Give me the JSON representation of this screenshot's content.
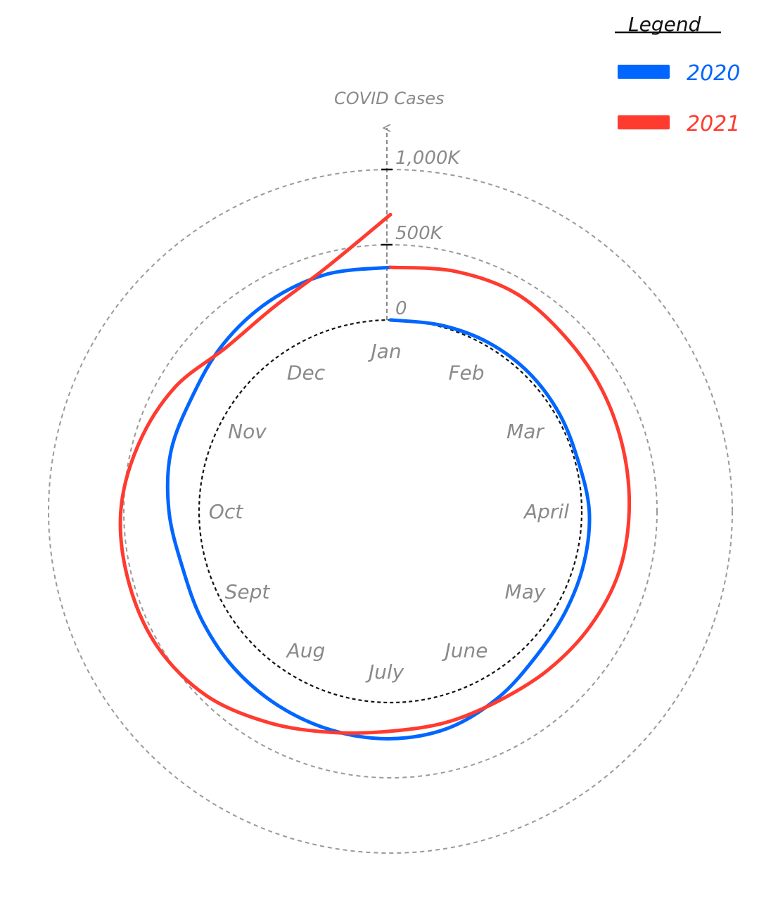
{
  "chart_data": {
    "type": "line",
    "subtype": "radial",
    "axis_title": "COVID Cases",
    "radial_ticks": [
      {
        "value": 0,
        "label": "0"
      },
      {
        "value": 500,
        "label": "500K"
      },
      {
        "value": 1000,
        "label": "1,000K"
      }
    ],
    "value_unit": "thousands",
    "rlim": [
      0,
      1000
    ],
    "grid": true,
    "months": [
      "Jan",
      "Feb",
      "Mar",
      "April",
      "May",
      "June",
      "July",
      "Aug",
      "Sept",
      "Oct",
      "Nov",
      "Dec"
    ],
    "legend": {
      "title": "Legend",
      "placement": "top-right"
    },
    "series": [
      {
        "name": "2020",
        "color": "#0066ff",
        "points": [
          {
            "month": 0.0,
            "value": 0
          },
          {
            "month": 0.5,
            "value": 10
          },
          {
            "month": 1.0,
            "value": 25
          },
          {
            "month": 1.5,
            "value": 30
          },
          {
            "month": 2.0,
            "value": 25
          },
          {
            "month": 2.5,
            "value": 20
          },
          {
            "month": 3.0,
            "value": 50
          },
          {
            "month": 3.5,
            "value": 60
          },
          {
            "month": 4.0,
            "value": 70
          },
          {
            "month": 4.5,
            "value": 95
          },
          {
            "month": 5.0,
            "value": 160
          },
          {
            "month": 5.5,
            "value": 220
          },
          {
            "month": 6.0,
            "value": 240
          },
          {
            "month": 6.5,
            "value": 235
          },
          {
            "month": 7.0,
            "value": 220
          },
          {
            "month": 7.5,
            "value": 200
          },
          {
            "month": 8.0,
            "value": 175
          },
          {
            "month": 8.5,
            "value": 160
          },
          {
            "month": 9.0,
            "value": 200
          },
          {
            "month": 9.5,
            "value": 240
          },
          {
            "month": 10.0,
            "value": 250
          },
          {
            "month": 10.5,
            "value": 300
          },
          {
            "month": 11.0,
            "value": 340
          },
          {
            "month": 11.5,
            "value": 360
          },
          {
            "month": 12.0,
            "value": 350
          }
        ]
      },
      {
        "name": "2021",
        "color": "#ff3b30",
        "points": [
          {
            "month": 0.0,
            "value": 350
          },
          {
            "month": 0.5,
            "value": 380
          },
          {
            "month": 1.0,
            "value": 400
          },
          {
            "month": 1.5,
            "value": 370
          },
          {
            "month": 2.0,
            "value": 350
          },
          {
            "month": 2.5,
            "value": 330
          },
          {
            "month": 3.0,
            "value": 315
          },
          {
            "month": 3.5,
            "value": 300
          },
          {
            "month": 4.0,
            "value": 260
          },
          {
            "month": 4.5,
            "value": 215
          },
          {
            "month": 5.0,
            "value": 180
          },
          {
            "month": 5.5,
            "value": 180
          },
          {
            "month": 6.0,
            "value": 190
          },
          {
            "month": 6.5,
            "value": 250
          },
          {
            "month": 7.0,
            "value": 350
          },
          {
            "month": 7.5,
            "value": 460
          },
          {
            "month": 8.0,
            "value": 520
          },
          {
            "month": 8.5,
            "value": 530
          },
          {
            "month": 9.0,
            "value": 520
          },
          {
            "month": 9.5,
            "value": 460
          },
          {
            "month": 10.0,
            "value": 380
          },
          {
            "month": 10.5,
            "value": 270
          },
          {
            "month": 11.0,
            "value": 290
          },
          {
            "month": 11.5,
            "value": 400
          },
          {
            "month": 12.0,
            "value": 700
          }
        ]
      }
    ]
  }
}
